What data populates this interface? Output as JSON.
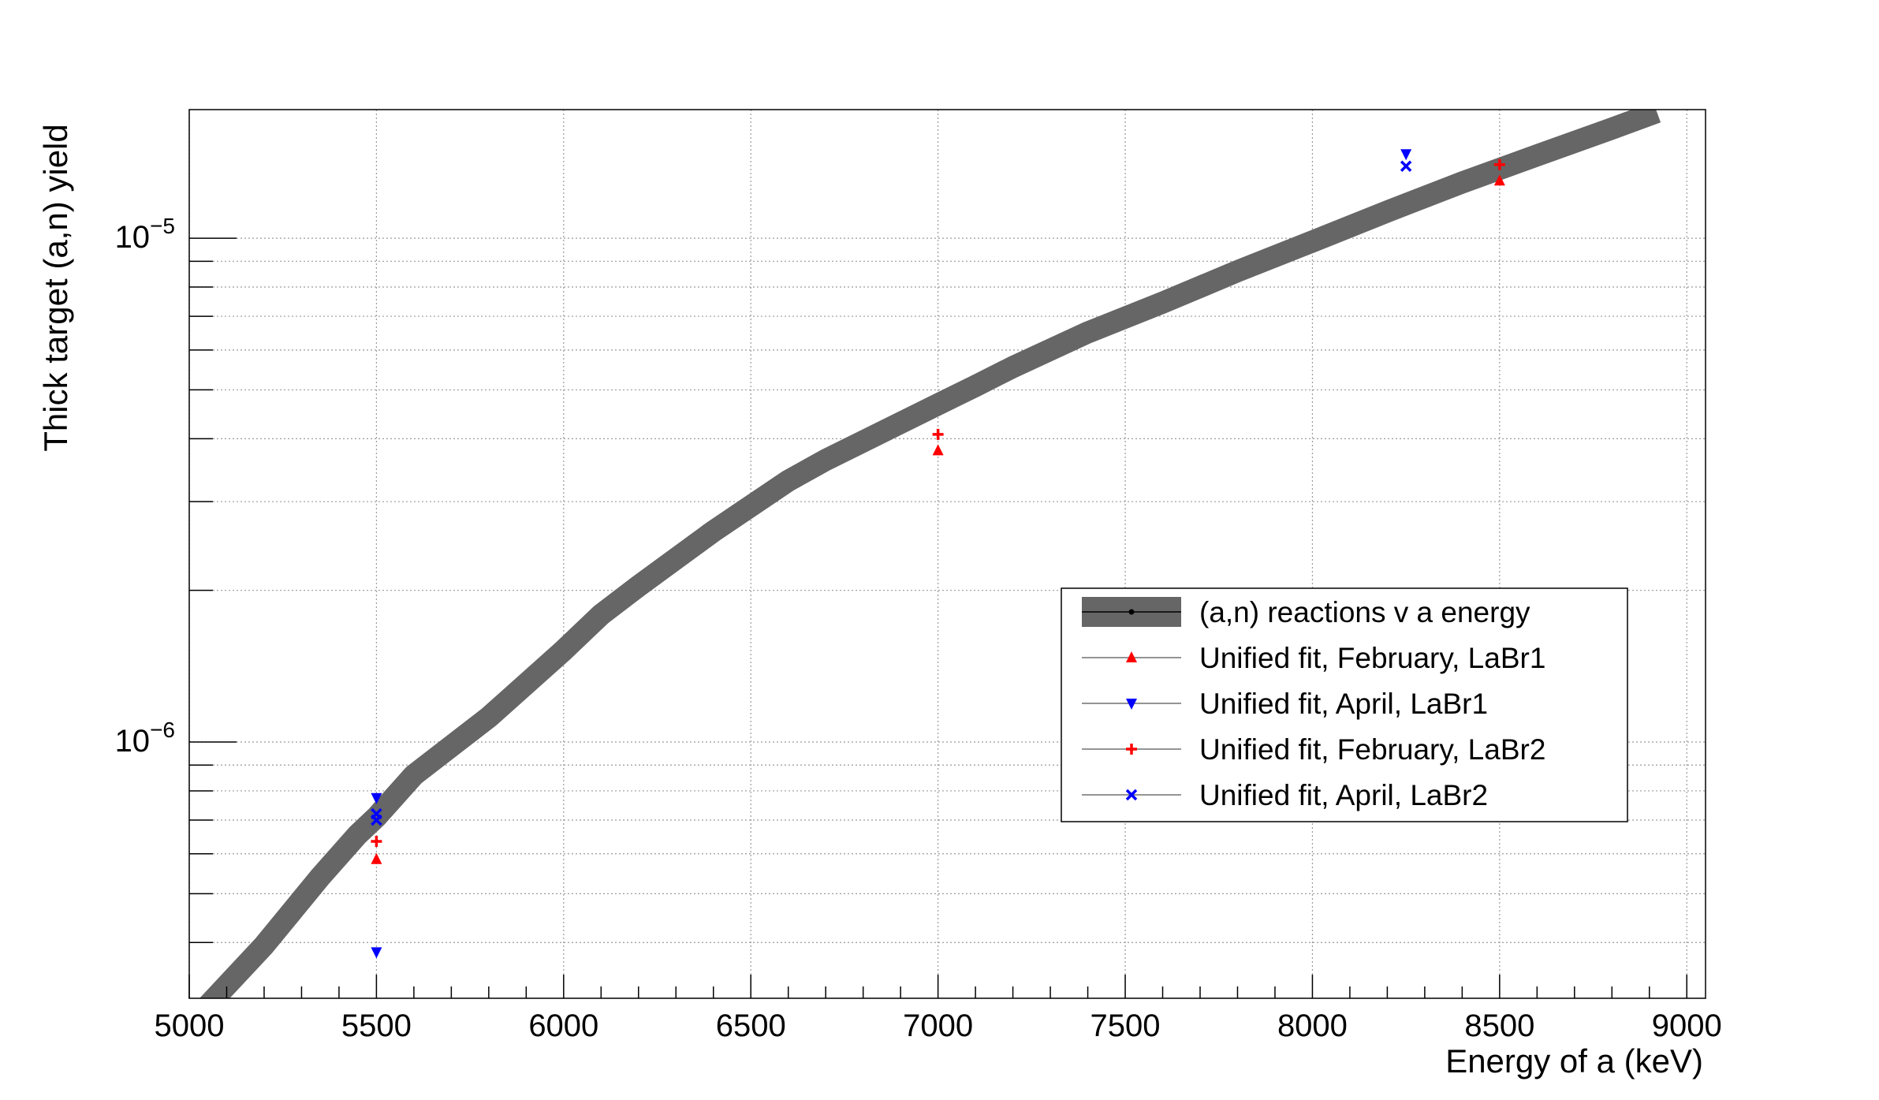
{
  "chart_data": {
    "type": "line",
    "title": "",
    "xlabel": "Energy of a (keV)",
    "ylabel": "Thick target (a,n) yield",
    "xlim": [
      5000,
      9050
    ],
    "ylim": [
      3.1e-07,
      1.8e-05
    ],
    "y_scale": "log",
    "grid": true,
    "legend_position": "center-right",
    "x_ticks": [
      "5000",
      "5500",
      "6000",
      "6500",
      "7000",
      "7500",
      "8000",
      "8500",
      "9000"
    ],
    "y_major_ticks": [
      {
        "value": 1e-06,
        "base": "10",
        "exp": "−6"
      },
      {
        "value": 1e-05,
        "base": "10",
        "exp": "−5"
      }
    ],
    "band": {
      "name": "(a,n) reactions v a energy",
      "color": "#666666",
      "x": [
        5050,
        5200,
        5350,
        5450,
        5500,
        5600,
        5800,
        6000,
        6100,
        6200,
        6400,
        6600,
        6700,
        6800,
        7000,
        7100,
        7200,
        7400,
        7600,
        7800,
        8000,
        8200,
        8400,
        8600,
        8800,
        8920
      ],
      "y": [
        3e-07,
        3.95e-07,
        5.4e-07,
        6.55e-07,
        7.1e-07,
        8.6e-07,
        1.12e-06,
        1.52e-06,
        1.79e-06,
        2.04e-06,
        2.62e-06,
        3.3e-06,
        3.63e-06,
        3.95e-06,
        4.68e-06,
        5.09e-06,
        5.55e-06,
        6.5e-06,
        7.45e-06,
        8.6e-06,
        9.85e-06,
        1.13e-05,
        1.29e-05,
        1.46e-05,
        1.65e-05,
        1.78e-05
      ]
    },
    "series": [
      {
        "name": "Unified fit, February, LaBr1",
        "color": "#ff0000",
        "marker": "triangle-up",
        "x": [
          5500,
          7000,
          8500
        ],
        "y": [
          5.85e-07,
          3.79e-06,
          1.3e-05
        ]
      },
      {
        "name": "Unified fit, April, LaBr1",
        "color": "#0000ff",
        "marker": "triangle-down",
        "x": [
          5500,
          5500,
          8250
        ],
        "y": [
          7.75e-07,
          3.83e-07,
          1.47e-05
        ]
      },
      {
        "name": "Unified fit, February, LaBr2",
        "color": "#ff0000",
        "marker": "plus",
        "x": [
          5500,
          7000,
          8500
        ],
        "y": [
          6.35e-07,
          4.08e-06,
          1.4e-05
        ]
      },
      {
        "name": "Unified fit, April, LaBr2",
        "color": "#0000ff",
        "marker": "cross",
        "x": [
          5500,
          5500,
          8250
        ],
        "y": [
          7e-07,
          7.2e-07,
          1.39e-05
        ]
      }
    ],
    "legend": [
      {
        "label": "(a,n) reactions v a energy",
        "kind": "band",
        "color": "#666666"
      },
      {
        "label": "Unified fit, February, LaBr1",
        "kind": "triangle-up",
        "color": "#ff0000"
      },
      {
        "label": "Unified fit, April, LaBr1",
        "kind": "triangle-down",
        "color": "#0000ff"
      },
      {
        "label": "Unified fit, February, LaBr2",
        "kind": "plus",
        "color": "#ff0000"
      },
      {
        "label": "Unified fit, April, LaBr2",
        "kind": "cross",
        "color": "#0000ff"
      }
    ]
  }
}
